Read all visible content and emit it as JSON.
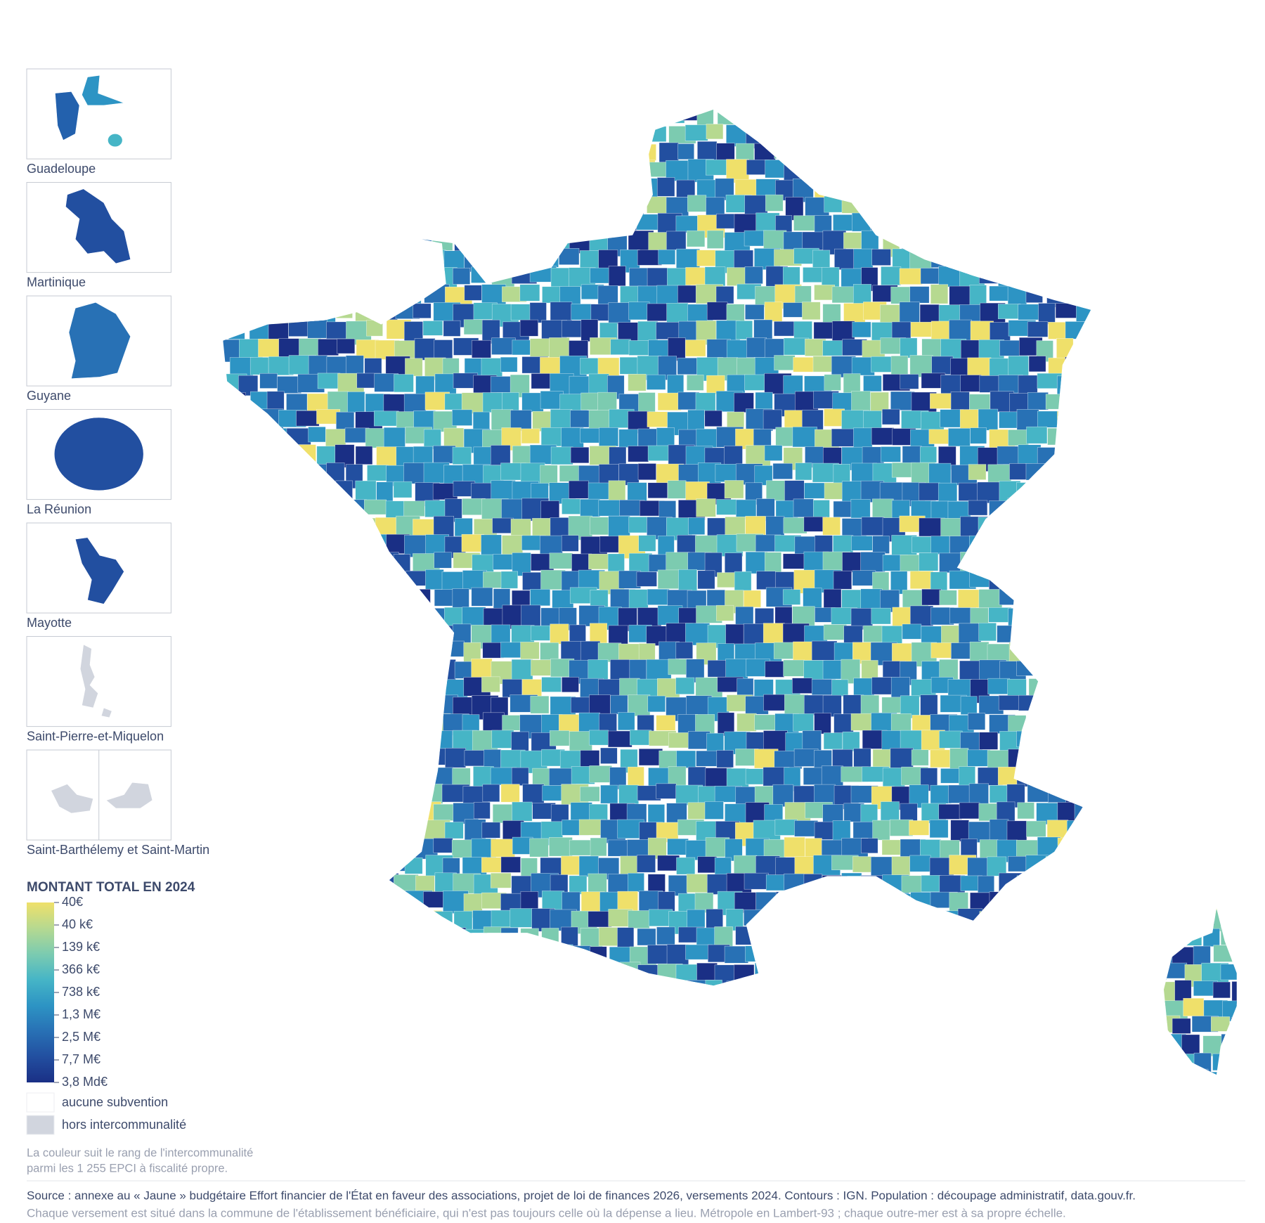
{
  "insets": [
    "Guadeloupe",
    "Martinique",
    "Guyane",
    "La Réunion",
    "Mayotte",
    "Saint-Pierre-et-Miquelon",
    "Saint-Barthélemy et Saint-Martin"
  ],
  "legend": {
    "title": "MONTANT TOTAL EN 2024",
    "labels": [
      "40€",
      "40 k€",
      "139 k€",
      "366 k€",
      "738 k€",
      "1,3 M€",
      "2,5 M€",
      "7,7 M€",
      "3,8 Md€"
    ],
    "colors": [
      "#efe06a",
      "#b6d990",
      "#7ccbb0",
      "#46b5c6",
      "#2d94c4",
      "#2871b5",
      "#224fa0",
      "#1a2f85"
    ],
    "swatches": [
      {
        "label": "aucune subvention",
        "color": "#ffffff"
      },
      {
        "label": "hors intercommunalité",
        "color": "#d1d5de"
      }
    ]
  },
  "note": [
    "La couleur suit le rang de l'intercommunalité",
    "parmi les 1 255 EPCI à fiscalité propre."
  ],
  "source": "Source : annexe au « Jaune » budgétaire Effort financier de l'État en faveur des associations, projet de loi de finances 2026, versements 2024. Contours : IGN. Population : découpage administratif, data.gouv.fr.",
  "footnote": "Chaque versement est situé dans la commune de l'établissement bénéficiaire, qui n'est pas toujours celle où la dépense a lieu. Métropole en Lambert-93 ; chaque outre-mer est à sa propre échelle."
}
